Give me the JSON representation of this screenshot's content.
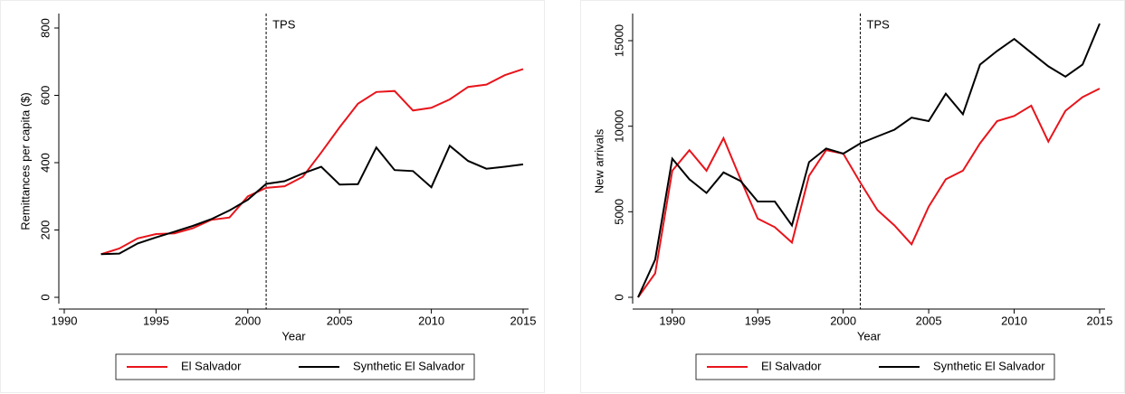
{
  "chart_data": [
    {
      "type": "line",
      "x_label": "Year",
      "y_label": "Remittances per capita ($)",
      "x": [
        1992,
        1993,
        1994,
        1995,
        1996,
        1997,
        1998,
        1999,
        2000,
        2001,
        2002,
        2003,
        2004,
        2005,
        2006,
        2007,
        2008,
        2009,
        2010,
        2011,
        2012,
        2013,
        2014,
        2015
      ],
      "series": [
        {
          "name": "El Salvador",
          "color": "#e8141b",
          "values": [
            128,
            145,
            175,
            188,
            190,
            205,
            230,
            237,
            300,
            325,
            330,
            358,
            430,
            505,
            575,
            610,
            613,
            555,
            563,
            588,
            625,
            632,
            660,
            678
          ]
        },
        {
          "name": "Synthetic El Salvador",
          "color": "#000000",
          "values": [
            128,
            130,
            160,
            178,
            195,
            212,
            232,
            258,
            290,
            337,
            345,
            368,
            388,
            335,
            336,
            445,
            378,
            375,
            327,
            450,
            405,
            382,
            388,
            395
          ]
        }
      ],
      "xlim": [
        1990,
        2015
      ],
      "xticks": [
        1990,
        1995,
        2000,
        2005,
        2010,
        2015
      ],
      "ylim": [
        0,
        800
      ],
      "yticks": [
        0,
        200,
        400,
        600,
        800
      ],
      "vline": 2001,
      "vline_label": "TPS"
    },
    {
      "type": "line",
      "x_label": "Year",
      "y_label": "New arrivals",
      "x": [
        1988,
        1989,
        1990,
        1991,
        1992,
        1993,
        1994,
        1995,
        1996,
        1997,
        1998,
        1999,
        2000,
        2001,
        2002,
        2003,
        2004,
        2005,
        2006,
        2007,
        2008,
        2009,
        2010,
        2011,
        2012,
        2013,
        2014,
        2015
      ],
      "series": [
        {
          "name": "El Salvador",
          "color": "#e8141b",
          "values": [
            0,
            1400,
            7400,
            8600,
            7400,
            9300,
            6900,
            4600,
            4100,
            3200,
            7100,
            8600,
            8400,
            6700,
            5100,
            4200,
            3100,
            5300,
            6900,
            7400,
            9000,
            10300,
            10600,
            11200,
            9100,
            10900,
            11700,
            12200
          ]
        },
        {
          "name": "Synthetic El Salvador",
          "color": "#000000",
          "values": [
            0,
            2200,
            8100,
            6900,
            6100,
            7300,
            6800,
            5600,
            5600,
            4200,
            7900,
            8700,
            8400,
            9000,
            9400,
            9800,
            10500,
            10300,
            11900,
            10700,
            13600,
            14400,
            15100,
            14300,
            13500,
            12900,
            13600,
            16000
          ]
        }
      ],
      "xlim": [
        1988,
        2015
      ],
      "xticks": [
        1990,
        1995,
        2000,
        2005,
        2010,
        2015
      ],
      "ylim": [
        0,
        15000
      ],
      "yticks": [
        0,
        5000,
        10000,
        15000
      ],
      "vline": 2001,
      "vline_label": "TPS"
    }
  ]
}
